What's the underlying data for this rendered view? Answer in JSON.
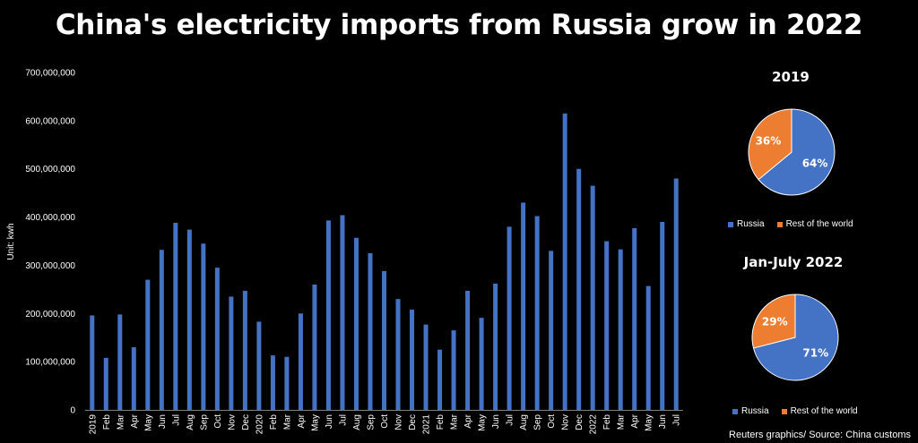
{
  "title": "China's electricity imports from Russia grow in 2022",
  "source": "Reuters graphics/ Source: China customs",
  "colors": {
    "background": "#000000",
    "bar": "#4472C4",
    "russia": "#4472C4",
    "rest": "#ED7D31",
    "text": "#ffffff"
  },
  "chart_data": [
    {
      "type": "bar",
      "title": "China's electricity imports from Russia grow in 2022",
      "xlabel": "",
      "ylabel": "Unit: kwh",
      "ylim": [
        0,
        700000000
      ],
      "yticks": [
        "0",
        "100,000,000",
        "200,000,000",
        "300,000,000",
        "400,000,000",
        "500,000,000",
        "600,000,000",
        "700,000,000"
      ],
      "categories": [
        "2019",
        "Feb",
        "Mar",
        "Apr",
        "May",
        "Jun",
        "Jul",
        "Aug",
        "Sep",
        "Oct",
        "Nov",
        "Dec",
        "2020",
        "Feb",
        "Mar",
        "Apr",
        "May",
        "Jun",
        "Jul",
        "Aug",
        "Sep",
        "Oct",
        "Nov",
        "Dec",
        "2021",
        "Feb",
        "Mar",
        "Apr",
        "May",
        "Jun",
        "Jul",
        "Aug",
        "Sep",
        "Oct",
        "Nov",
        "Dec",
        "2022",
        "Feb",
        "Mar",
        "Apr",
        "May",
        "Jun",
        "Jul"
      ],
      "values": [
        196000000,
        108000000,
        198000000,
        130000000,
        270000000,
        332000000,
        388000000,
        374000000,
        345000000,
        295000000,
        235000000,
        247000000,
        183000000,
        113000000,
        110000000,
        200000000,
        260000000,
        393000000,
        404000000,
        357000000,
        325000000,
        288000000,
        230000000,
        208000000,
        177000000,
        125000000,
        165000000,
        247000000,
        191000000,
        262000000,
        380000000,
        430000000,
        402000000,
        330000000,
        615000000,
        500000000,
        465000000,
        350000000,
        333000000,
        377000000,
        257000000,
        390000000,
        480000000
      ]
    },
    {
      "type": "pie",
      "title": "2019",
      "labels": [
        "Russia",
        "Rest of the world"
      ],
      "values": [
        64,
        36
      ],
      "data_labels": [
        "64%",
        "36%"
      ]
    },
    {
      "type": "pie",
      "title": "Jan-July 2022",
      "labels": [
        "Russia",
        "Rest of the world"
      ],
      "values": [
        71,
        29
      ],
      "data_labels": [
        "71%",
        "29%"
      ]
    }
  ]
}
